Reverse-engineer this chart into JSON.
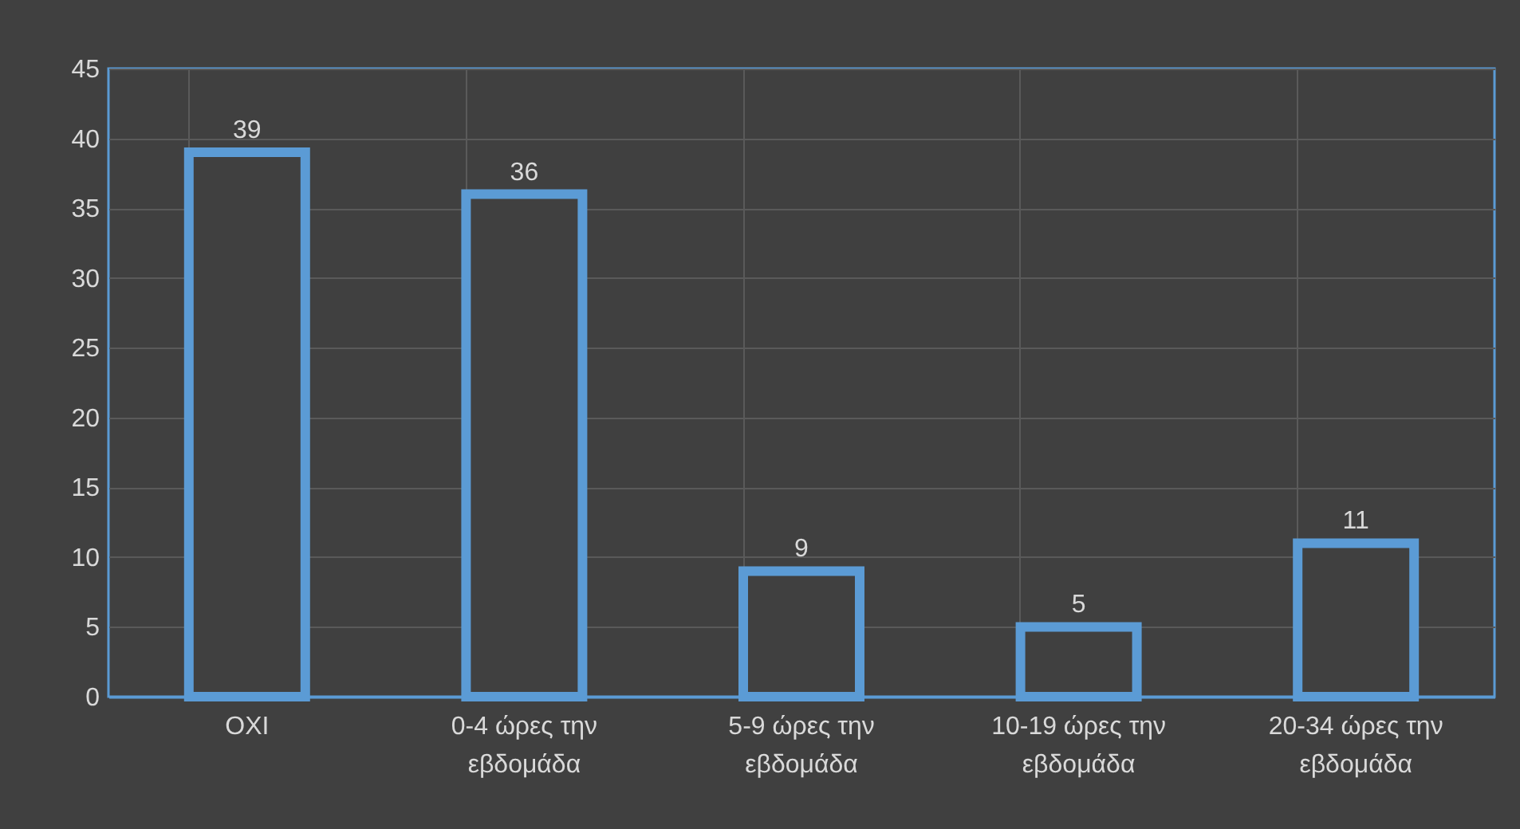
{
  "chart_data": {
    "type": "bar",
    "categories": [
      "ΟΧΙ",
      "0-4 ώρες την εβδομάδα",
      "5-9 ώρες την εβδομάδα",
      "10-19 ώρες την εβδομάδα",
      "20-34 ώρες την εβδομάδα"
    ],
    "series": [
      {
        "color": "#5b9bd5",
        "values": [
          39,
          36,
          9,
          5,
          11
        ]
      }
    ],
    "ylim": [
      0,
      45
    ],
    "yticks": [
      0,
      5,
      10,
      15,
      20,
      25,
      30,
      35,
      40,
      45
    ],
    "grid": true,
    "data_labels": true
  }
}
